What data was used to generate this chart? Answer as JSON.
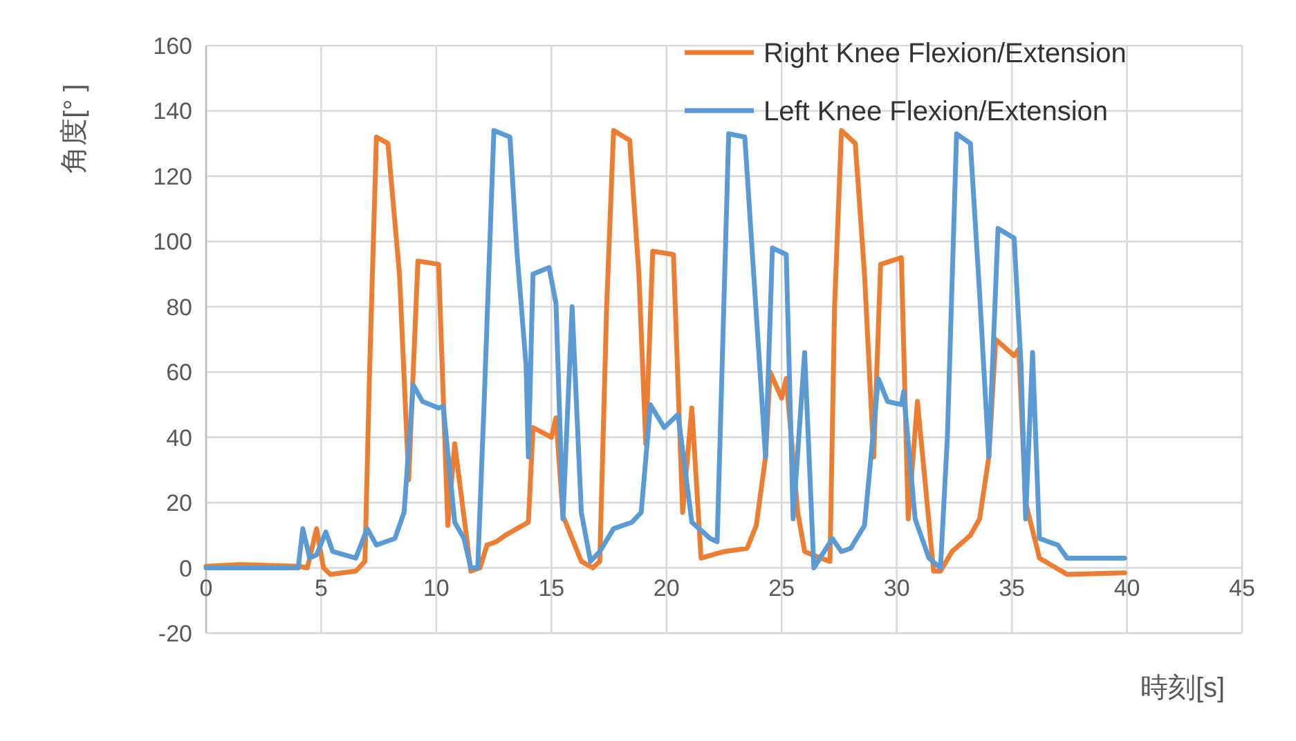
{
  "chart_data": {
    "type": "line",
    "xlabel": "時刻[s]",
    "ylabel": "角度[° ]",
    "xlim": [
      0,
      45
    ],
    "xticks": [
      0,
      5,
      10,
      15,
      20,
      25,
      30,
      35,
      40,
      45
    ],
    "ylim": [
      -20,
      160
    ],
    "yticks": [
      -20,
      0,
      20,
      40,
      60,
      80,
      100,
      120,
      140,
      160
    ],
    "grid": true,
    "legend": "top right",
    "marker": "none",
    "line_style": "solid",
    "series": [
      {
        "name": "Right Knee Flexion/Extension",
        "color": "#ed7d31",
        "x": [
          0,
          1.5,
          4,
          4.4,
          4.8,
          5.1,
          5.4,
          6.5,
          6.9,
          7.1,
          7.4,
          7.9,
          8.4,
          8.8,
          9.2,
          10.1,
          10.5,
          10.8,
          11.5,
          11.9,
          12.2,
          12.6,
          13,
          13.5,
          14,
          14.2,
          15,
          15.2,
          15.5,
          16.3,
          16.8,
          17.1,
          17.4,
          17.7,
          18.4,
          18.8,
          19.1,
          19.4,
          20.3,
          20.7,
          21.1,
          21.5,
          22.5,
          23.5,
          23.9,
          24.3,
          24.5,
          25,
          25.2,
          25.7,
          26,
          26.7,
          27.1,
          27.3,
          27.6,
          28.2,
          28.6,
          29,
          29.3,
          30.2,
          30.5,
          30.9,
          31.6,
          31.9,
          32.4,
          33.2,
          33.6,
          34,
          34.3,
          35.1,
          35.3,
          35.6,
          36.2,
          37.4,
          39.9
        ],
        "values": [
          0.5,
          1,
          0.5,
          0,
          12,
          0,
          -2,
          -1,
          2,
          60,
          132,
          130,
          90,
          27,
          94,
          93,
          13,
          38,
          -1,
          0,
          7,
          8,
          10,
          12,
          14,
          43,
          40,
          46,
          16,
          2,
          0,
          2,
          80,
          134,
          131,
          90,
          38,
          97,
          96,
          17,
          49,
          3,
          5,
          6,
          13,
          34,
          60,
          52,
          58,
          17,
          5,
          3,
          2,
          80,
          134,
          130,
          90,
          34,
          93,
          95,
          15,
          51,
          -1,
          -1,
          5,
          10,
          15,
          34,
          70,
          65,
          67,
          20,
          3,
          -2,
          -1.5
        ]
      },
      {
        "name": "Left Knee Flexion/Extension",
        "color": "#5b9bd5",
        "x": [
          0,
          4,
          4.2,
          4.5,
          4.8,
          5.2,
          5.5,
          6,
          6.5,
          7,
          7.4,
          8.2,
          8.6,
          9,
          9.4,
          10.1,
          10.3,
          10.8,
          11.2,
          11.5,
          11.8,
          12.1,
          12.5,
          13.2,
          13.5,
          13.9,
          14,
          14.2,
          14.9,
          15.2,
          15.5,
          15.9,
          16.3,
          16.7,
          17.1,
          17.7,
          18.5,
          18.9,
          19.3,
          19.9,
          20.5,
          21.1,
          21.9,
          22.2,
          22.7,
          23.4,
          24.1,
          24.3,
          24.6,
          25.2,
          25.5,
          26,
          26.4,
          27.2,
          27.6,
          28,
          28.6,
          29.2,
          29.6,
          30.2,
          30.3,
          30.8,
          31.4,
          31.9,
          32.2,
          32.6,
          33.2,
          33.6,
          34,
          34.4,
          35.1,
          35.4,
          35.6,
          35.9,
          36.2,
          37,
          37.4,
          39.9
        ],
        "values": [
          0,
          0,
          12,
          3,
          4,
          11,
          5,
          4,
          3,
          12,
          7,
          9,
          17,
          56,
          51,
          49,
          49.5,
          14,
          9,
          0,
          0,
          55,
          134,
          132,
          97,
          62,
          34,
          90,
          92,
          81,
          15,
          80,
          17,
          2,
          5,
          12,
          14,
          17,
          50,
          43,
          47,
          14,
          9,
          8,
          133,
          132,
          56,
          34,
          98,
          96,
          15,
          66,
          0,
          9,
          5,
          6,
          13,
          58,
          51,
          50,
          54,
          15,
          3,
          0,
          40,
          133,
          130,
          84,
          34,
          104,
          101,
          62,
          15,
          66,
          9,
          7,
          3,
          3
        ]
      }
    ]
  }
}
